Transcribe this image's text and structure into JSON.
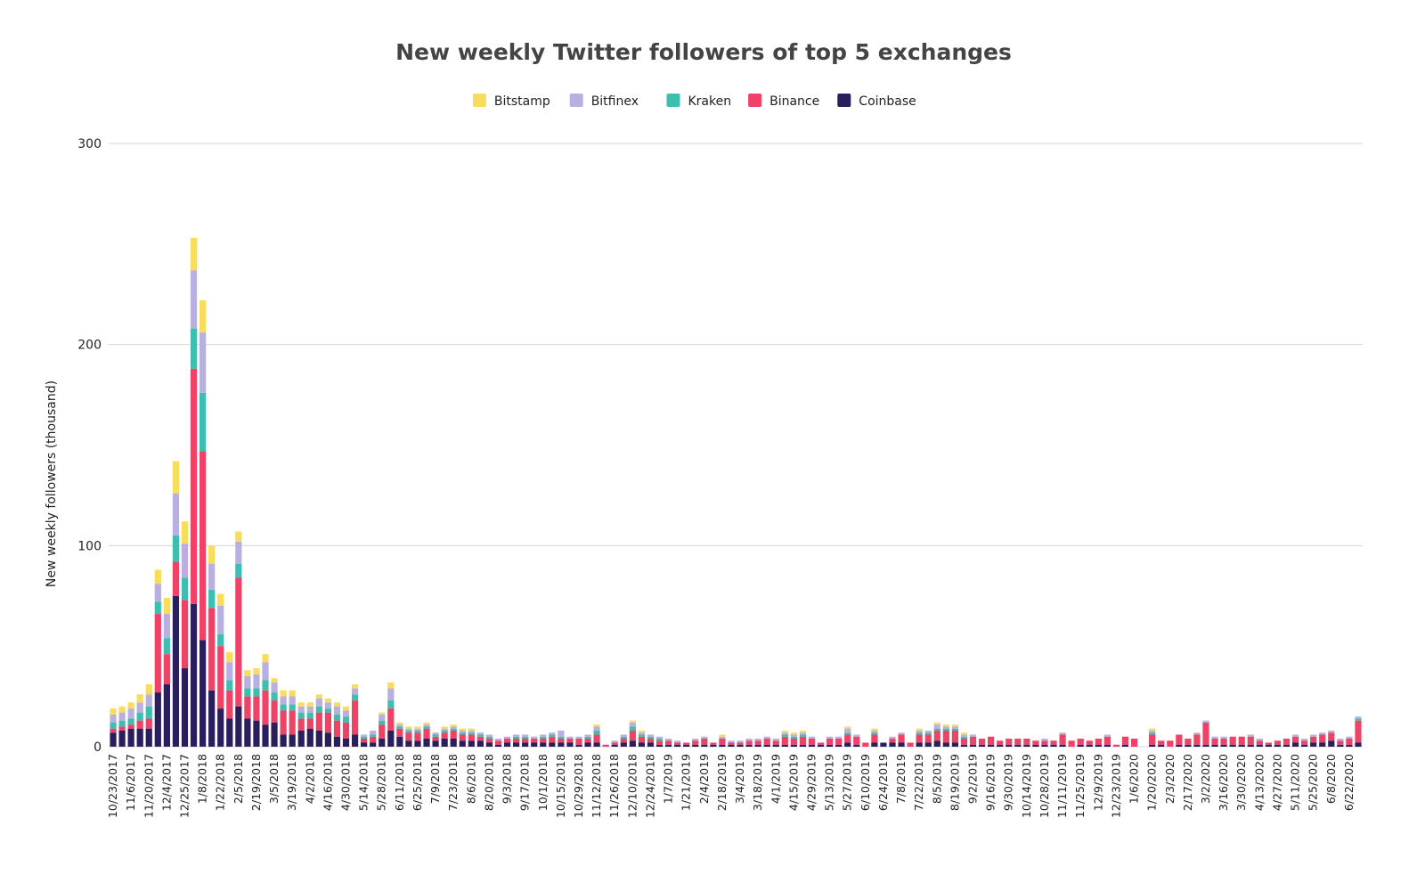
{
  "chart_data": {
    "type": "stacked_bar",
    "title": "New weekly Twitter followers of top 5 exchanges",
    "y_label": "New weekly followers (thousand)",
    "ylim": [
      0,
      300
    ],
    "yticks": [
      0,
      100,
      200,
      300
    ],
    "grid": true,
    "legend": "top",
    "categories": [
      "10/23/2017",
      null,
      "11/6/2017",
      null,
      "11/20/2017",
      null,
      "12/4/2017",
      null,
      "12/25/2017",
      null,
      "1/8/2018",
      null,
      "1/22/2018",
      null,
      "2/5/2018",
      null,
      "2/19/2018",
      null,
      "3/5/2018",
      null,
      "3/19/2018",
      null,
      "4/2/2018",
      null,
      "4/16/2018",
      null,
      "4/30/2018",
      null,
      "5/14/2018",
      null,
      "5/28/2018",
      null,
      "6/11/2018",
      null,
      "6/25/2018",
      null,
      "7/9/2018",
      null,
      "7/23/2018",
      null,
      "8/6/2018",
      null,
      "8/20/2018",
      null,
      "9/3/2018",
      null,
      "9/17/2018",
      null,
      "10/1/2018",
      null,
      "10/15/2018",
      null,
      "10/29/2018",
      null,
      "11/12/2018",
      null,
      "11/26/2018",
      null,
      "12/10/2018",
      null,
      "12/24/2018",
      null,
      "1/7/2019",
      null,
      "1/21/2019",
      null,
      "2/4/2019",
      null,
      "2/18/2019",
      null,
      "3/4/2019",
      null,
      "3/18/2019",
      null,
      "4/1/2019",
      null,
      "4/15/2019",
      null,
      "4/29/2019",
      null,
      "5/13/2019",
      null,
      "5/27/2019",
      null,
      "6/10/2019",
      null,
      "6/24/2019",
      null,
      "7/8/2019",
      null,
      "7/22/2019",
      null,
      "8/5/2019",
      null,
      "8/19/2019",
      null,
      "9/2/2019",
      null,
      "9/16/2019",
      null,
      "9/30/2019",
      null,
      "10/14/2019",
      null,
      "10/28/2019",
      null,
      "11/11/2019",
      null,
      "11/25/2019",
      null,
      "12/9/2019",
      null,
      "12/23/2019",
      null,
      "1/6/2020",
      null,
      "1/20/2020",
      null,
      "2/3/2020",
      null,
      "2/17/2020",
      null,
      "3/2/2020",
      null,
      "3/16/2020",
      null,
      "3/30/2020",
      null,
      "4/13/2020",
      null,
      "4/27/2020",
      null,
      "5/11/2020",
      null,
      "5/25/2020",
      null,
      "6/8/2020",
      null,
      "6/22/2020",
      null
    ],
    "series": [
      {
        "name": "Bitstamp",
        "color": "#f9dc5c",
        "values": [
          3,
          3,
          3,
          4,
          5,
          7,
          8,
          16,
          11,
          16,
          16,
          9,
          6,
          5,
          5,
          3,
          3,
          4,
          2,
          3,
          3,
          2,
          2,
          2,
          2,
          2,
          2,
          2,
          0,
          0,
          1,
          3,
          1,
          1,
          1,
          1,
          0,
          1,
          1,
          1,
          1,
          0,
          0,
          0,
          0,
          0,
          0,
          0,
          0,
          0,
          0,
          0,
          0,
          0,
          1,
          0,
          0,
          0,
          1,
          1,
          0,
          0,
          0,
          0,
          0,
          0,
          0,
          0,
          1,
          0,
          0,
          0,
          0,
          0,
          0,
          1,
          1,
          1,
          0,
          0,
          0,
          0,
          1,
          0,
          0,
          1,
          0,
          0,
          0,
          0,
          1,
          0,
          1,
          1,
          1,
          1,
          0,
          0,
          0,
          0,
          0,
          0,
          0,
          0,
          0,
          0,
          0,
          0,
          0,
          0,
          0,
          0,
          0,
          0,
          0,
          0,
          1,
          0,
          0,
          0,
          0,
          0,
          0,
          0,
          0,
          0,
          0,
          0,
          0,
          0,
          0,
          0,
          0,
          0,
          0,
          0,
          0,
          0,
          0,
          0
        ]
      },
      {
        "name": "Bitfinex",
        "color": "#b8b0e0",
        "values": [
          4,
          4,
          5,
          5,
          6,
          9,
          12,
          21,
          17,
          29,
          30,
          13,
          14,
          9,
          11,
          6,
          7,
          9,
          5,
          4,
          4,
          3,
          3,
          4,
          3,
          4,
          3,
          3,
          1,
          2,
          3,
          6,
          1,
          1,
          1,
          1,
          1,
          1,
          1,
          1,
          1,
          1,
          1,
          1,
          1,
          1,
          1,
          1,
          1,
          1,
          3,
          1,
          1,
          1,
          2,
          0,
          1,
          1,
          2,
          1,
          1,
          1,
          1,
          1,
          0,
          1,
          1,
          0,
          1,
          1,
          1,
          1,
          1,
          1,
          1,
          1,
          1,
          1,
          1,
          0,
          1,
          1,
          2,
          1,
          0,
          1,
          0,
          1,
          1,
          0,
          1,
          1,
          2,
          1,
          1,
          1,
          1,
          0,
          0,
          0,
          0,
          0,
          0,
          0,
          1,
          0,
          1,
          0,
          0,
          0,
          0,
          1,
          0,
          0,
          0,
          0,
          1,
          0,
          0,
          0,
          0,
          1,
          1,
          1,
          1,
          0,
          0,
          1,
          1,
          0,
          0,
          0,
          1,
          1,
          1,
          1,
          1,
          1,
          1,
          1
        ]
      },
      {
        "name": "Kraken",
        "color": "#3dbfb0",
        "values": [
          3,
          3,
          3,
          4,
          6,
          6,
          8,
          13,
          11,
          20,
          29,
          9,
          6,
          5,
          7,
          4,
          4,
          5,
          4,
          3,
          3,
          3,
          3,
          3,
          2,
          3,
          3,
          3,
          1,
          1,
          2,
          4,
          1,
          1,
          1,
          1,
          1,
          1,
          1,
          1,
          1,
          1,
          1,
          0,
          0,
          1,
          1,
          0,
          1,
          1,
          1,
          0,
          0,
          1,
          2,
          0,
          0,
          1,
          2,
          1,
          1,
          1,
          0,
          0,
          0,
          0,
          0,
          0,
          0,
          0,
          0,
          0,
          0,
          0,
          0,
          1,
          1,
          1,
          0,
          0,
          0,
          0,
          1,
          0,
          0,
          1,
          0,
          0,
          0,
          0,
          1,
          1,
          1,
          1,
          1,
          1,
          0,
          0,
          0,
          0,
          0,
          0,
          0,
          0,
          0,
          0,
          0,
          0,
          0,
          0,
          0,
          0,
          0,
          0,
          0,
          0,
          1,
          0,
          0,
          0,
          0,
          0,
          0,
          0,
          0,
          0,
          0,
          0,
          0,
          0,
          0,
          0,
          0,
          0,
          0,
          0,
          0,
          0,
          0,
          1
        ]
      },
      {
        "name": "Binance",
        "color": "#ee4266",
        "values": [
          2,
          2,
          2,
          4,
          5,
          39,
          15,
          17,
          34,
          117,
          94,
          41,
          31,
          14,
          64,
          11,
          12,
          17,
          11,
          12,
          12,
          6,
          5,
          9,
          10,
          8,
          8,
          17,
          2,
          3,
          7,
          11,
          4,
          4,
          4,
          5,
          2,
          3,
          4,
          3,
          3,
          2,
          2,
          2,
          2,
          2,
          2,
          2,
          2,
          3,
          2,
          2,
          3,
          2,
          4,
          1,
          1,
          2,
          5,
          3,
          2,
          2,
          2,
          1,
          1,
          2,
          3,
          1,
          3,
          1,
          1,
          2,
          2,
          3,
          2,
          4,
          3,
          4,
          3,
          1,
          3,
          3,
          4,
          4,
          2,
          4,
          0,
          2,
          4,
          2,
          4,
          4,
          5,
          6,
          6,
          3,
          4,
          3,
          4,
          2,
          3,
          3,
          3,
          2,
          2,
          2,
          5,
          3,
          3,
          2,
          3,
          4,
          1,
          4,
          4,
          0,
          5,
          2,
          3,
          5,
          3,
          5,
          11,
          3,
          3,
          4,
          4,
          4,
          2,
          1,
          2,
          3,
          3,
          2,
          3,
          4,
          4,
          2,
          3,
          11
        ]
      },
      {
        "name": "Coinbase",
        "color": "#2a1e5c",
        "values": [
          7,
          8,
          9,
          9,
          9,
          27,
          31,
          75,
          39,
          71,
          53,
          28,
          19,
          14,
          20,
          14,
          13,
          11,
          12,
          6,
          6,
          8,
          9,
          8,
          7,
          5,
          4,
          6,
          2,
          2,
          4,
          8,
          5,
          3,
          3,
          4,
          3,
          4,
          4,
          3,
          3,
          3,
          2,
          1,
          2,
          2,
          2,
          2,
          2,
          2,
          2,
          2,
          1,
          2,
          2,
          0,
          1,
          2,
          3,
          2,
          2,
          1,
          1,
          1,
          1,
          1,
          1,
          1,
          1,
          1,
          1,
          1,
          1,
          1,
          1,
          1,
          1,
          1,
          1,
          1,
          1,
          1,
          2,
          1,
          0,
          2,
          2,
          2,
          2,
          0,
          2,
          2,
          3,
          2,
          2,
          1,
          1,
          1,
          1,
          1,
          1,
          1,
          1,
          1,
          1,
          1,
          1,
          0,
          1,
          1,
          1,
          1,
          0,
          1,
          0,
          0,
          1,
          1,
          0,
          1,
          1,
          1,
          1,
          1,
          1,
          1,
          1,
          1,
          1,
          1,
          1,
          1,
          2,
          1,
          2,
          2,
          3,
          1,
          1,
          2
        ]
      }
    ]
  }
}
